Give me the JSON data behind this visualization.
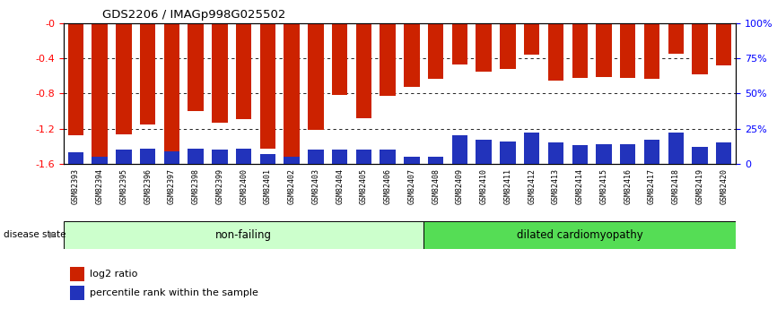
{
  "title": "GDS2206 / IMAGp998G025502",
  "samples": [
    "GSM82393",
    "GSM82394",
    "GSM82395",
    "GSM82396",
    "GSM82397",
    "GSM82398",
    "GSM82399",
    "GSM82400",
    "GSM82401",
    "GSM82402",
    "GSM82403",
    "GSM82404",
    "GSM82405",
    "GSM82406",
    "GSM82407",
    "GSM82408",
    "GSM82409",
    "GSM82410",
    "GSM82411",
    "GSM82412",
    "GSM82413",
    "GSM82414",
    "GSM82415",
    "GSM82416",
    "GSM82417",
    "GSM82418",
    "GSM82419",
    "GSM82420"
  ],
  "log2_ratio": [
    -1.28,
    -1.58,
    -1.27,
    -1.15,
    -1.46,
    -1.0,
    -1.13,
    -1.09,
    -1.43,
    -1.52,
    -1.21,
    -0.82,
    -1.08,
    -0.83,
    -0.72,
    -0.63,
    -0.47,
    -0.55,
    -0.52,
    -0.36,
    -0.65,
    -0.62,
    -0.61,
    -0.62,
    -0.63,
    -0.35,
    -0.58,
    -0.48
  ],
  "percentile": [
    8,
    5,
    10,
    11,
    9,
    11,
    10,
    11,
    7,
    5,
    10,
    10,
    10,
    10,
    5,
    5,
    20,
    17,
    16,
    22,
    15,
    13,
    14,
    14,
    17,
    22,
    12,
    15
  ],
  "non_failing_count": 15,
  "disease_state_label": "disease state",
  "nonfailing_label": "non-failing",
  "dilated_label": "dilated cardiomyopathy",
  "legend_log2": "log2 ratio",
  "legend_pct": "percentile rank within the sample",
  "bar_color": "#cc2200",
  "blue_color": "#2233bb",
  "nonfailing_bg": "#ccffcc",
  "dilated_bg": "#55dd55",
  "left_ylim": [
    -1.6,
    0.0
  ],
  "right_ylim": [
    0,
    100
  ],
  "left_yticks": [
    0.0,
    -0.4,
    -0.8,
    -1.2,
    -1.6
  ],
  "left_yticklabels": [
    "-0",
    "-0.4",
    "-0.8",
    "-1.2",
    "-1.6"
  ],
  "right_yticks": [
    100,
    75,
    50,
    25,
    0
  ],
  "right_yticklabels": [
    "100%",
    "75%",
    "50%",
    "25%",
    "0"
  ],
  "grid_values": [
    -0.4,
    -0.8,
    -1.2
  ],
  "bg_color": "#ffffff",
  "xtick_bg": "#d8d8d8"
}
